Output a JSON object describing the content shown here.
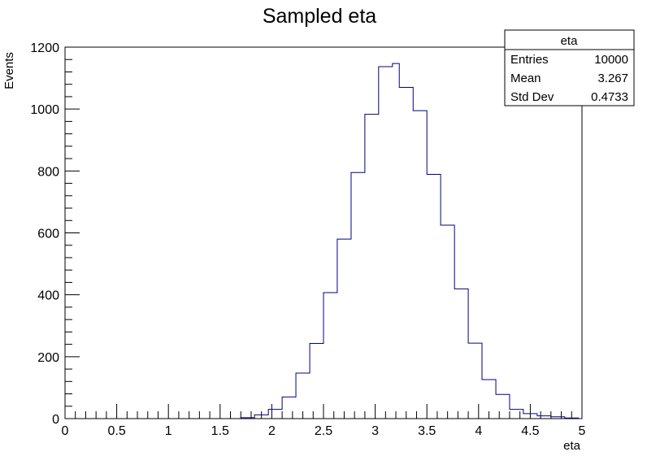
{
  "chart_data": {
    "type": "histogram",
    "title": "Sampled eta",
    "xlabel": "eta",
    "ylabel": "Events",
    "xlim": [
      0,
      5
    ],
    "ylim": [
      0,
      1200
    ],
    "grid": false,
    "line_color": "#000080",
    "x_ticks": [
      "0",
      "0.5",
      "1",
      "1.5",
      "2",
      "2.5",
      "3",
      "3.5",
      "4",
      "4.5",
      "5"
    ],
    "y_ticks": [
      "0",
      "200",
      "400",
      "600",
      "800",
      "1000",
      "1200"
    ],
    "bin_edges": [
      1.7,
      1.833,
      1.967,
      2.1,
      2.233,
      2.367,
      2.5,
      2.633,
      2.767,
      2.9,
      3.033,
      3.167,
      3.233,
      3.367,
      3.5,
      3.633,
      3.767,
      3.9,
      4.033,
      4.167,
      4.3,
      4.433,
      4.567,
      4.7,
      4.833,
      4.967,
      5.0
    ],
    "values": [
      3,
      12,
      30,
      70,
      147,
      243,
      407,
      580,
      795,
      983,
      1137,
      1147,
      1070,
      995,
      789,
      625,
      419,
      244,
      126,
      78,
      30,
      16,
      9,
      6,
      2,
      0
    ],
    "stats_box": {
      "title": "eta",
      "rows": [
        {
          "label": "Entries",
          "value": "10000"
        },
        {
          "label": "Mean",
          "value": "3.267"
        },
        {
          "label": "Std Dev",
          "value": "0.4733"
        }
      ]
    }
  }
}
